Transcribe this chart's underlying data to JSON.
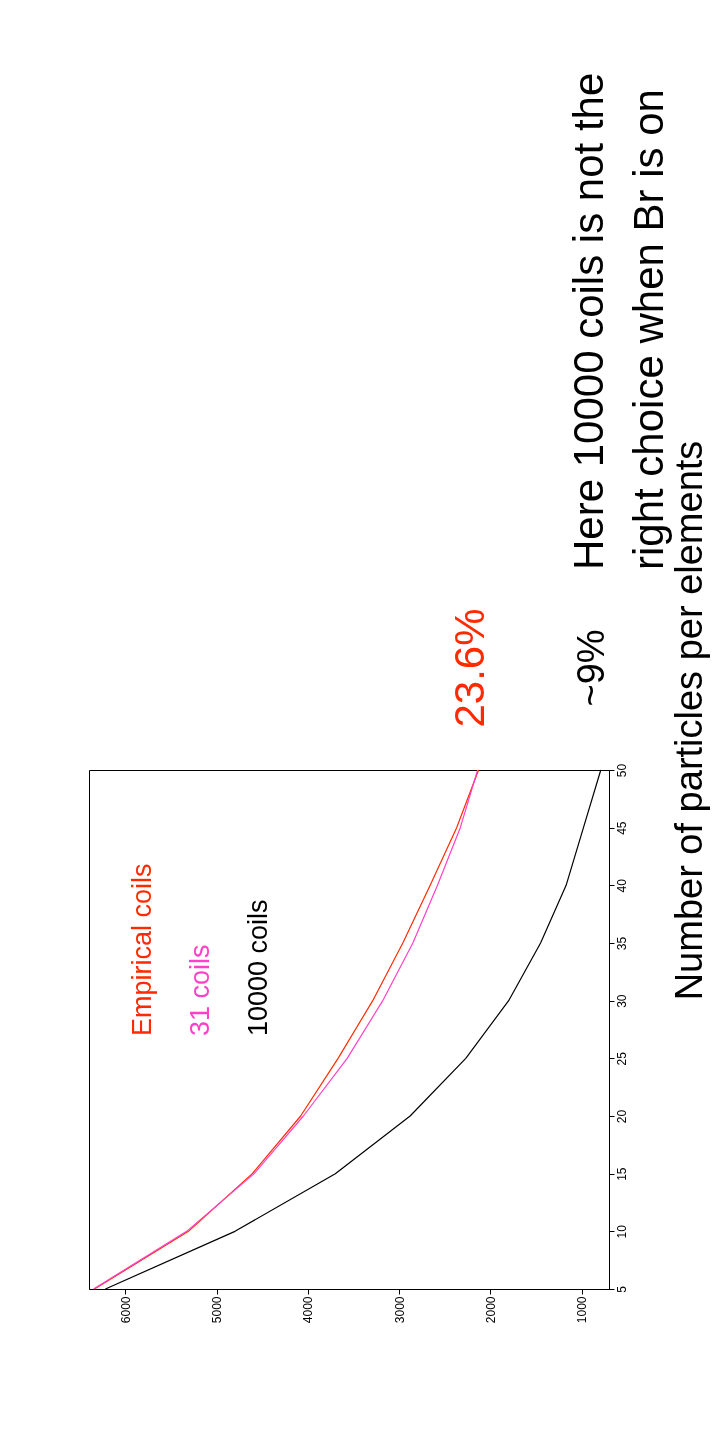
{
  "chart_data": {
    "type": "line",
    "ylabel": "Number of particles per elements",
    "series": [
      {
        "name": "Empirical coils",
        "color": "#ff2a00",
        "x": [
          6340,
          5310,
          4610,
          4080,
          3670,
          3290,
          2960,
          2660,
          2370,
          2130
        ],
        "values": [
          5,
          10,
          15,
          20,
          25,
          30,
          35,
          40,
          45,
          50
        ]
      },
      {
        "name": "31 coils",
        "color": "#ff40c8",
        "x": [
          6350,
          5330,
          4590,
          4050,
          3570,
          3180,
          2850,
          2580,
          2330,
          2140
        ],
        "values": [
          5,
          10,
          15,
          20,
          25,
          30,
          35,
          40,
          45,
          50
        ]
      },
      {
        "name": "10000 coils",
        "color": "#000000",
        "x": [
          6220,
          4800,
          3700,
          2880,
          2270,
          1800,
          1450,
          1170,
          980,
          790
        ],
        "values": [
          5,
          10,
          15,
          20,
          25,
          30,
          35,
          40,
          45,
          50
        ]
      }
    ],
    "xlim": [
      6400,
      700
    ],
    "xticks": [
      6000,
      5000,
      4000,
      3000,
      2000,
      1000
    ],
    "ylim": [
      5,
      50
    ],
    "yticks": [
      5,
      10,
      15,
      20,
      25,
      30,
      35,
      40,
      45,
      50
    ],
    "grid": false,
    "legend": "top",
    "marker": "none",
    "line_style": "solid",
    "annotations": [
      {
        "text": "23.6%",
        "x": 2130,
        "y": 50
      },
      {
        "text": "~9%",
        "x": 790,
        "y": 50
      },
      "Here 10000 coils is not the\nright choice when Br is on"
    ]
  }
}
